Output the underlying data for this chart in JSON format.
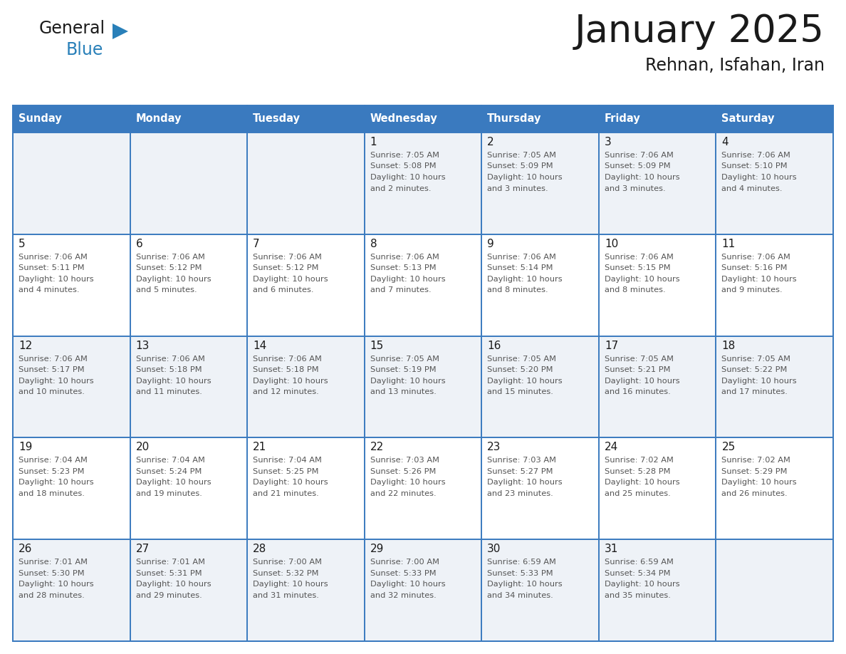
{
  "title": "January 2025",
  "subtitle": "Rehnan, Isfahan, Iran",
  "header_bg": "#3a7abf",
  "header_text": "#ffffff",
  "cell_bg_odd": "#eef2f7",
  "cell_bg_even": "#ffffff",
  "border_color": "#3a7abf",
  "day_names": [
    "Sunday",
    "Monday",
    "Tuesday",
    "Wednesday",
    "Thursday",
    "Friday",
    "Saturday"
  ],
  "title_color": "#1a1a1a",
  "day_num_color": "#1a1a1a",
  "info_color": "#555555",
  "logo_general_color": "#1a1a1a",
  "logo_blue_color": "#2980b9",
  "fig_width": 11.88,
  "fig_height": 9.18,
  "dpi": 100,
  "calendar": [
    [
      {
        "day": "",
        "sunrise": "",
        "sunset": "",
        "daylight": ""
      },
      {
        "day": "",
        "sunrise": "",
        "sunset": "",
        "daylight": ""
      },
      {
        "day": "",
        "sunrise": "",
        "sunset": "",
        "daylight": ""
      },
      {
        "day": "1",
        "sunrise": "7:05 AM",
        "sunset": "5:08 PM",
        "daylight": "10 hours and 2 minutes."
      },
      {
        "day": "2",
        "sunrise": "7:05 AM",
        "sunset": "5:09 PM",
        "daylight": "10 hours and 3 minutes."
      },
      {
        "day": "3",
        "sunrise": "7:06 AM",
        "sunset": "5:09 PM",
        "daylight": "10 hours and 3 minutes."
      },
      {
        "day": "4",
        "sunrise": "7:06 AM",
        "sunset": "5:10 PM",
        "daylight": "10 hours and 4 minutes."
      }
    ],
    [
      {
        "day": "5",
        "sunrise": "7:06 AM",
        "sunset": "5:11 PM",
        "daylight": "10 hours and 4 minutes."
      },
      {
        "day": "6",
        "sunrise": "7:06 AM",
        "sunset": "5:12 PM",
        "daylight": "10 hours and 5 minutes."
      },
      {
        "day": "7",
        "sunrise": "7:06 AM",
        "sunset": "5:12 PM",
        "daylight": "10 hours and 6 minutes."
      },
      {
        "day": "8",
        "sunrise": "7:06 AM",
        "sunset": "5:13 PM",
        "daylight": "10 hours and 7 minutes."
      },
      {
        "day": "9",
        "sunrise": "7:06 AM",
        "sunset": "5:14 PM",
        "daylight": "10 hours and 8 minutes."
      },
      {
        "day": "10",
        "sunrise": "7:06 AM",
        "sunset": "5:15 PM",
        "daylight": "10 hours and 8 minutes."
      },
      {
        "day": "11",
        "sunrise": "7:06 AM",
        "sunset": "5:16 PM",
        "daylight": "10 hours and 9 minutes."
      }
    ],
    [
      {
        "day": "12",
        "sunrise": "7:06 AM",
        "sunset": "5:17 PM",
        "daylight": "10 hours and 10 minutes."
      },
      {
        "day": "13",
        "sunrise": "7:06 AM",
        "sunset": "5:18 PM",
        "daylight": "10 hours and 11 minutes."
      },
      {
        "day": "14",
        "sunrise": "7:06 AM",
        "sunset": "5:18 PM",
        "daylight": "10 hours and 12 minutes."
      },
      {
        "day": "15",
        "sunrise": "7:05 AM",
        "sunset": "5:19 PM",
        "daylight": "10 hours and 13 minutes."
      },
      {
        "day": "16",
        "sunrise": "7:05 AM",
        "sunset": "5:20 PM",
        "daylight": "10 hours and 15 minutes."
      },
      {
        "day": "17",
        "sunrise": "7:05 AM",
        "sunset": "5:21 PM",
        "daylight": "10 hours and 16 minutes."
      },
      {
        "day": "18",
        "sunrise": "7:05 AM",
        "sunset": "5:22 PM",
        "daylight": "10 hours and 17 minutes."
      }
    ],
    [
      {
        "day": "19",
        "sunrise": "7:04 AM",
        "sunset": "5:23 PM",
        "daylight": "10 hours and 18 minutes."
      },
      {
        "day": "20",
        "sunrise": "7:04 AM",
        "sunset": "5:24 PM",
        "daylight": "10 hours and 19 minutes."
      },
      {
        "day": "21",
        "sunrise": "7:04 AM",
        "sunset": "5:25 PM",
        "daylight": "10 hours and 21 minutes."
      },
      {
        "day": "22",
        "sunrise": "7:03 AM",
        "sunset": "5:26 PM",
        "daylight": "10 hours and 22 minutes."
      },
      {
        "day": "23",
        "sunrise": "7:03 AM",
        "sunset": "5:27 PM",
        "daylight": "10 hours and 23 minutes."
      },
      {
        "day": "24",
        "sunrise": "7:02 AM",
        "sunset": "5:28 PM",
        "daylight": "10 hours and 25 minutes."
      },
      {
        "day": "25",
        "sunrise": "7:02 AM",
        "sunset": "5:29 PM",
        "daylight": "10 hours and 26 minutes."
      }
    ],
    [
      {
        "day": "26",
        "sunrise": "7:01 AM",
        "sunset": "5:30 PM",
        "daylight": "10 hours and 28 minutes."
      },
      {
        "day": "27",
        "sunrise": "7:01 AM",
        "sunset": "5:31 PM",
        "daylight": "10 hours and 29 minutes."
      },
      {
        "day": "28",
        "sunrise": "7:00 AM",
        "sunset": "5:32 PM",
        "daylight": "10 hours and 31 minutes."
      },
      {
        "day": "29",
        "sunrise": "7:00 AM",
        "sunset": "5:33 PM",
        "daylight": "10 hours and 32 minutes."
      },
      {
        "day": "30",
        "sunrise": "6:59 AM",
        "sunset": "5:33 PM",
        "daylight": "10 hours and 34 minutes."
      },
      {
        "day": "31",
        "sunrise": "6:59 AM",
        "sunset": "5:34 PM",
        "daylight": "10 hours and 35 minutes."
      },
      {
        "day": "",
        "sunrise": "",
        "sunset": "",
        "daylight": ""
      }
    ]
  ]
}
